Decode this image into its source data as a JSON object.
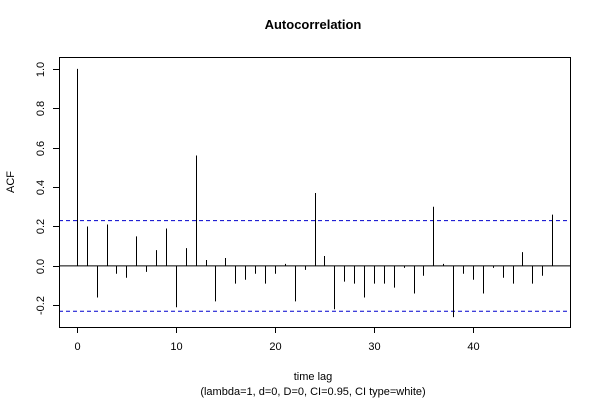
{
  "chart_data": {
    "type": "bar",
    "title": "Autocorrelation",
    "xlabel": "time lag",
    "subtitle": "(lambda=1, d=0, D=0, CI=0.95, CI type=white)",
    "ylabel": "ACF",
    "xlim": [
      -1.8,
      49.8
    ],
    "ylim": [
      -0.31,
      1.06
    ],
    "x_ticks": [
      0,
      10,
      20,
      30,
      40
    ],
    "y_ticks": [
      -0.2,
      0.0,
      0.2,
      0.4,
      0.6,
      0.8,
      1.0
    ],
    "confidence_bounds": [
      0.23,
      -0.23
    ],
    "confidence_color": "#0000cd",
    "bar_color": "#000000",
    "grid": false,
    "legend": "none",
    "lags": [
      0,
      1,
      2,
      3,
      4,
      5,
      6,
      7,
      8,
      9,
      10,
      11,
      12,
      13,
      14,
      15,
      16,
      17,
      18,
      19,
      20,
      21,
      22,
      23,
      24,
      25,
      26,
      27,
      28,
      29,
      30,
      31,
      32,
      33,
      34,
      35,
      36,
      37,
      38,
      39,
      40,
      41,
      42,
      43,
      44,
      45,
      46,
      47,
      48
    ],
    "values": [
      1.0,
      0.2,
      -0.16,
      0.21,
      -0.04,
      -0.06,
      0.15,
      -0.03,
      0.08,
      0.19,
      -0.21,
      0.09,
      0.56,
      0.03,
      -0.18,
      0.04,
      -0.09,
      -0.07,
      -0.04,
      -0.09,
      -0.04,
      0.01,
      -0.18,
      -0.02,
      0.37,
      0.05,
      -0.22,
      -0.08,
      -0.09,
      -0.16,
      -0.09,
      -0.09,
      -0.11,
      -0.01,
      -0.14,
      -0.05,
      0.3,
      0.01,
      -0.26,
      -0.04,
      -0.07,
      -0.14,
      -0.01,
      -0.06,
      -0.09,
      0.07,
      -0.09,
      -0.05,
      0.26
    ]
  }
}
